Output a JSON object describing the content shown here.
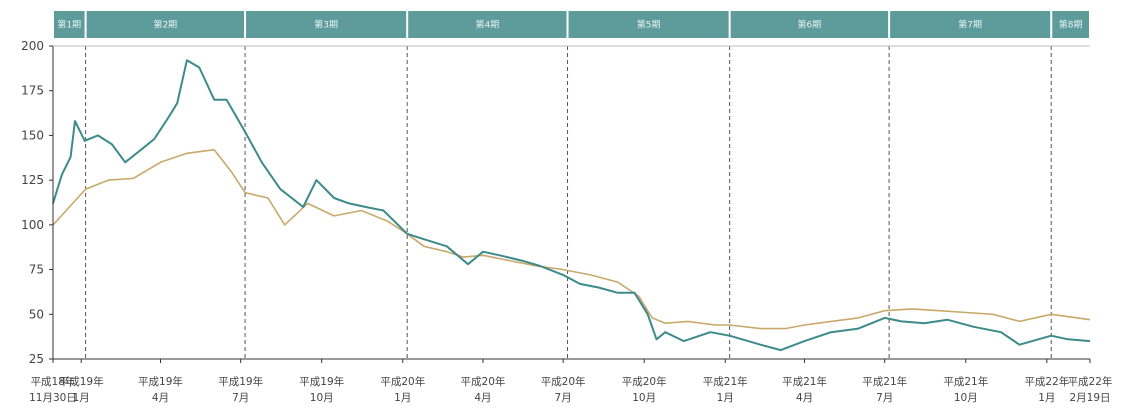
{
  "chart_data": {
    "type": "line",
    "title": "",
    "xlabel": "",
    "ylabel": "",
    "ylim": [
      25,
      200
    ],
    "yticks": [
      25,
      50,
      75,
      100,
      125,
      150,
      175,
      200
    ],
    "grid": false,
    "legend": "none",
    "colors": {
      "series_primary": "#3d8a8a",
      "series_secondary": "#c9a96b",
      "period_band": "#5e9c9c",
      "divider": "#555555",
      "axis": "#333333"
    },
    "periods": [
      {
        "label": "第1期",
        "from": "2006-11-30",
        "to": "2007-01-06"
      },
      {
        "label": "第2期",
        "from": "2007-01-06",
        "to": "2007-07-06"
      },
      {
        "label": "第3期",
        "from": "2007-07-06",
        "to": "2008-01-06"
      },
      {
        "label": "第4期",
        "from": "2008-01-06",
        "to": "2008-07-06"
      },
      {
        "label": "第5期",
        "from": "2008-07-06",
        "to": "2009-01-06"
      },
      {
        "label": "第6期",
        "from": "2009-01-06",
        "to": "2009-07-06"
      },
      {
        "label": "第7期",
        "from": "2009-07-06",
        "to": "2010-01-06"
      },
      {
        "label": "第8期",
        "from": "2010-01-06",
        "to": "2010-02-19"
      }
    ],
    "xticks": [
      {
        "date": "2006-11-30",
        "line1": "平成18年",
        "line2": "11月30日"
      },
      {
        "date": "2007-01-01",
        "line1": "平成19年",
        "line2": "1月"
      },
      {
        "date": "2007-04-01",
        "line1": "平成19年",
        "line2": "4月"
      },
      {
        "date": "2007-07-01",
        "line1": "平成19年",
        "line2": "7月"
      },
      {
        "date": "2007-10-01",
        "line1": "平成19年",
        "line2": "10月"
      },
      {
        "date": "2008-01-01",
        "line1": "平成20年",
        "line2": "1月"
      },
      {
        "date": "2008-04-01",
        "line1": "平成20年",
        "line2": "4月"
      },
      {
        "date": "2008-07-01",
        "line1": "平成20年",
        "line2": "7月"
      },
      {
        "date": "2008-10-01",
        "line1": "平成20年",
        "line2": "10月"
      },
      {
        "date": "2009-01-01",
        "line1": "平成21年",
        "line2": "1月"
      },
      {
        "date": "2009-04-01",
        "line1": "平成21年",
        "line2": "4月"
      },
      {
        "date": "2009-07-01",
        "line1": "平成21年",
        "line2": "7月"
      },
      {
        "date": "2009-10-01",
        "line1": "平成21年",
        "line2": "10月"
      },
      {
        "date": "2010-01-01",
        "line1": "平成22年",
        "line2": "1月"
      },
      {
        "date": "2010-02-19",
        "line1": "平成22年",
        "line2": "2月19日"
      }
    ],
    "series": [
      {
        "key": "primary",
        "points": [
          [
            "2006-11-30",
            112
          ],
          [
            "2006-12-10",
            128
          ],
          [
            "2006-12-20",
            138
          ],
          [
            "2006-12-25",
            158
          ],
          [
            "2007-01-05",
            147
          ],
          [
            "2007-01-20",
            150
          ],
          [
            "2007-02-05",
            145
          ],
          [
            "2007-02-20",
            135
          ],
          [
            "2007-03-10",
            142
          ],
          [
            "2007-03-25",
            148
          ],
          [
            "2007-04-10",
            160
          ],
          [
            "2007-04-20",
            168
          ],
          [
            "2007-05-01",
            192
          ],
          [
            "2007-05-15",
            188
          ],
          [
            "2007-06-01",
            170
          ],
          [
            "2007-06-15",
            170
          ],
          [
            "2007-07-06",
            152
          ],
          [
            "2007-07-25",
            135
          ],
          [
            "2007-08-15",
            120
          ],
          [
            "2007-09-10",
            110
          ],
          [
            "2007-09-25",
            125
          ],
          [
            "2007-10-15",
            115
          ],
          [
            "2007-11-01",
            112
          ],
          [
            "2007-11-20",
            110
          ],
          [
            "2007-12-10",
            108
          ],
          [
            "2008-01-06",
            95
          ],
          [
            "2008-01-25",
            92
          ],
          [
            "2008-02-20",
            88
          ],
          [
            "2008-03-15",
            78
          ],
          [
            "2008-04-01",
            85
          ],
          [
            "2008-04-20",
            83
          ],
          [
            "2008-05-15",
            80
          ],
          [
            "2008-06-05",
            77
          ],
          [
            "2008-07-01",
            72
          ],
          [
            "2008-07-20",
            67
          ],
          [
            "2008-08-10",
            65
          ],
          [
            "2008-09-01",
            62
          ],
          [
            "2008-09-20",
            62
          ],
          [
            "2008-10-05",
            50
          ],
          [
            "2008-10-15",
            36
          ],
          [
            "2008-10-25",
            40
          ],
          [
            "2008-11-15",
            35
          ],
          [
            "2008-12-15",
            40
          ],
          [
            "2009-01-06",
            38
          ],
          [
            "2009-02-10",
            33
          ],
          [
            "2009-03-05",
            30
          ],
          [
            "2009-04-01",
            35
          ],
          [
            "2009-05-01",
            40
          ],
          [
            "2009-06-01",
            42
          ],
          [
            "2009-07-01",
            48
          ],
          [
            "2009-07-20",
            46
          ],
          [
            "2009-08-15",
            45
          ],
          [
            "2009-09-10",
            47
          ],
          [
            "2009-10-10",
            43
          ],
          [
            "2009-11-10",
            40
          ],
          [
            "2009-12-01",
            33
          ],
          [
            "2010-01-06",
            38
          ],
          [
            "2010-01-25",
            36
          ],
          [
            "2010-02-19",
            35
          ]
        ]
      },
      {
        "key": "secondary",
        "points": [
          [
            "2006-11-30",
            100
          ],
          [
            "2006-12-15",
            108
          ],
          [
            "2007-01-06",
            120
          ],
          [
            "2007-02-01",
            125
          ],
          [
            "2007-03-01",
            126
          ],
          [
            "2007-04-01",
            135
          ],
          [
            "2007-05-01",
            140
          ],
          [
            "2007-06-01",
            142
          ],
          [
            "2007-06-20",
            130
          ],
          [
            "2007-07-06",
            118
          ],
          [
            "2007-08-01",
            115
          ],
          [
            "2007-08-20",
            100
          ],
          [
            "2007-09-15",
            112
          ],
          [
            "2007-10-15",
            105
          ],
          [
            "2007-11-15",
            108
          ],
          [
            "2007-12-15",
            102
          ],
          [
            "2008-01-06",
            95
          ],
          [
            "2008-01-25",
            88
          ],
          [
            "2008-02-20",
            85
          ],
          [
            "2008-03-10",
            82
          ],
          [
            "2008-04-01",
            83
          ],
          [
            "2008-05-01",
            80
          ],
          [
            "2008-06-01",
            77
          ],
          [
            "2008-07-01",
            75
          ],
          [
            "2008-08-01",
            72
          ],
          [
            "2008-09-01",
            68
          ],
          [
            "2008-09-25",
            60
          ],
          [
            "2008-10-10",
            48
          ],
          [
            "2008-10-25",
            45
          ],
          [
            "2008-11-20",
            46
          ],
          [
            "2008-12-20",
            44
          ],
          [
            "2009-01-06",
            44
          ],
          [
            "2009-02-10",
            42
          ],
          [
            "2009-03-10",
            42
          ],
          [
            "2009-04-01",
            44
          ],
          [
            "2009-05-01",
            46
          ],
          [
            "2009-06-01",
            48
          ],
          [
            "2009-07-01",
            52
          ],
          [
            "2009-08-01",
            53
          ],
          [
            "2009-09-01",
            52
          ],
          [
            "2009-10-01",
            51
          ],
          [
            "2009-11-01",
            50
          ],
          [
            "2009-12-01",
            46
          ],
          [
            "2010-01-06",
            50
          ],
          [
            "2010-02-19",
            47
          ]
        ]
      }
    ]
  }
}
